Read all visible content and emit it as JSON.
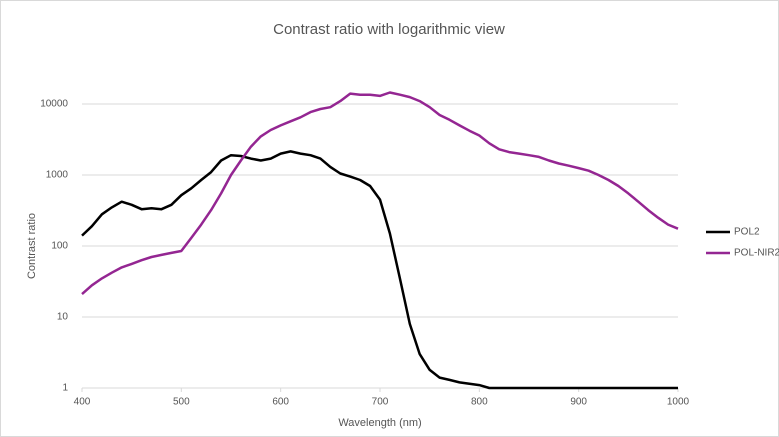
{
  "chart_data": {
    "type": "line",
    "title": "Contrast ratio with logarithmic view",
    "x_label": "Wavelength (nm)",
    "y_label": "Contrast ratio",
    "log_y": true,
    "grid": true,
    "legend": "right",
    "xlim": [
      400,
      1000
    ],
    "xticks": [
      400,
      500,
      600,
      700,
      800,
      900,
      1000
    ],
    "ylim": [
      1,
      10000
    ],
    "yticks": [
      1,
      10,
      100,
      1000,
      10000
    ],
    "x": [
      400,
      410,
      420,
      430,
      440,
      450,
      460,
      470,
      480,
      490,
      500,
      510,
      520,
      530,
      540,
      550,
      560,
      570,
      580,
      590,
      600,
      610,
      620,
      630,
      640,
      650,
      660,
      670,
      680,
      690,
      700,
      710,
      720,
      730,
      740,
      750,
      760,
      770,
      780,
      790,
      800,
      810,
      820,
      830,
      840,
      850,
      860,
      870,
      880,
      890,
      900,
      910,
      920,
      930,
      940,
      950,
      960,
      970,
      980,
      990,
      1000
    ],
    "series": [
      {
        "name": "POL2",
        "color": "#000000",
        "values": [
          140,
          190,
          280,
          350,
          420,
          380,
          330,
          340,
          330,
          380,
          520,
          650,
          850,
          1100,
          1600,
          1900,
          1850,
          1700,
          1600,
          1700,
          2000,
          2150,
          2000,
          1900,
          1700,
          1300,
          1050,
          950,
          850,
          700,
          450,
          150,
          35,
          8,
          3,
          1.8,
          1.4,
          1.3,
          1.2,
          1.15,
          1.1,
          1,
          1,
          1,
          1,
          1,
          1,
          1,
          1,
          1,
          1,
          1,
          1,
          1,
          1,
          1,
          1,
          1,
          1,
          1,
          1
        ]
      },
      {
        "name": "POL-NIR2",
        "color": "#942692",
        "values": [
          21,
          28,
          35,
          42,
          50,
          56,
          63,
          70,
          75,
          80,
          85,
          130,
          200,
          320,
          550,
          1000,
          1600,
          2500,
          3500,
          4300,
          5000,
          5700,
          6500,
          7700,
          8500,
          9000,
          11000,
          14000,
          13500,
          13500,
          13000,
          14500,
          13500,
          12500,
          11000,
          9000,
          7000,
          6000,
          5000,
          4200,
          3600,
          2800,
          2300,
          2100,
          2000,
          1900,
          1800,
          1600,
          1450,
          1350,
          1250,
          1150,
          1000,
          850,
          700,
          550,
          420,
          320,
          250,
          200,
          175
        ]
      }
    ]
  }
}
